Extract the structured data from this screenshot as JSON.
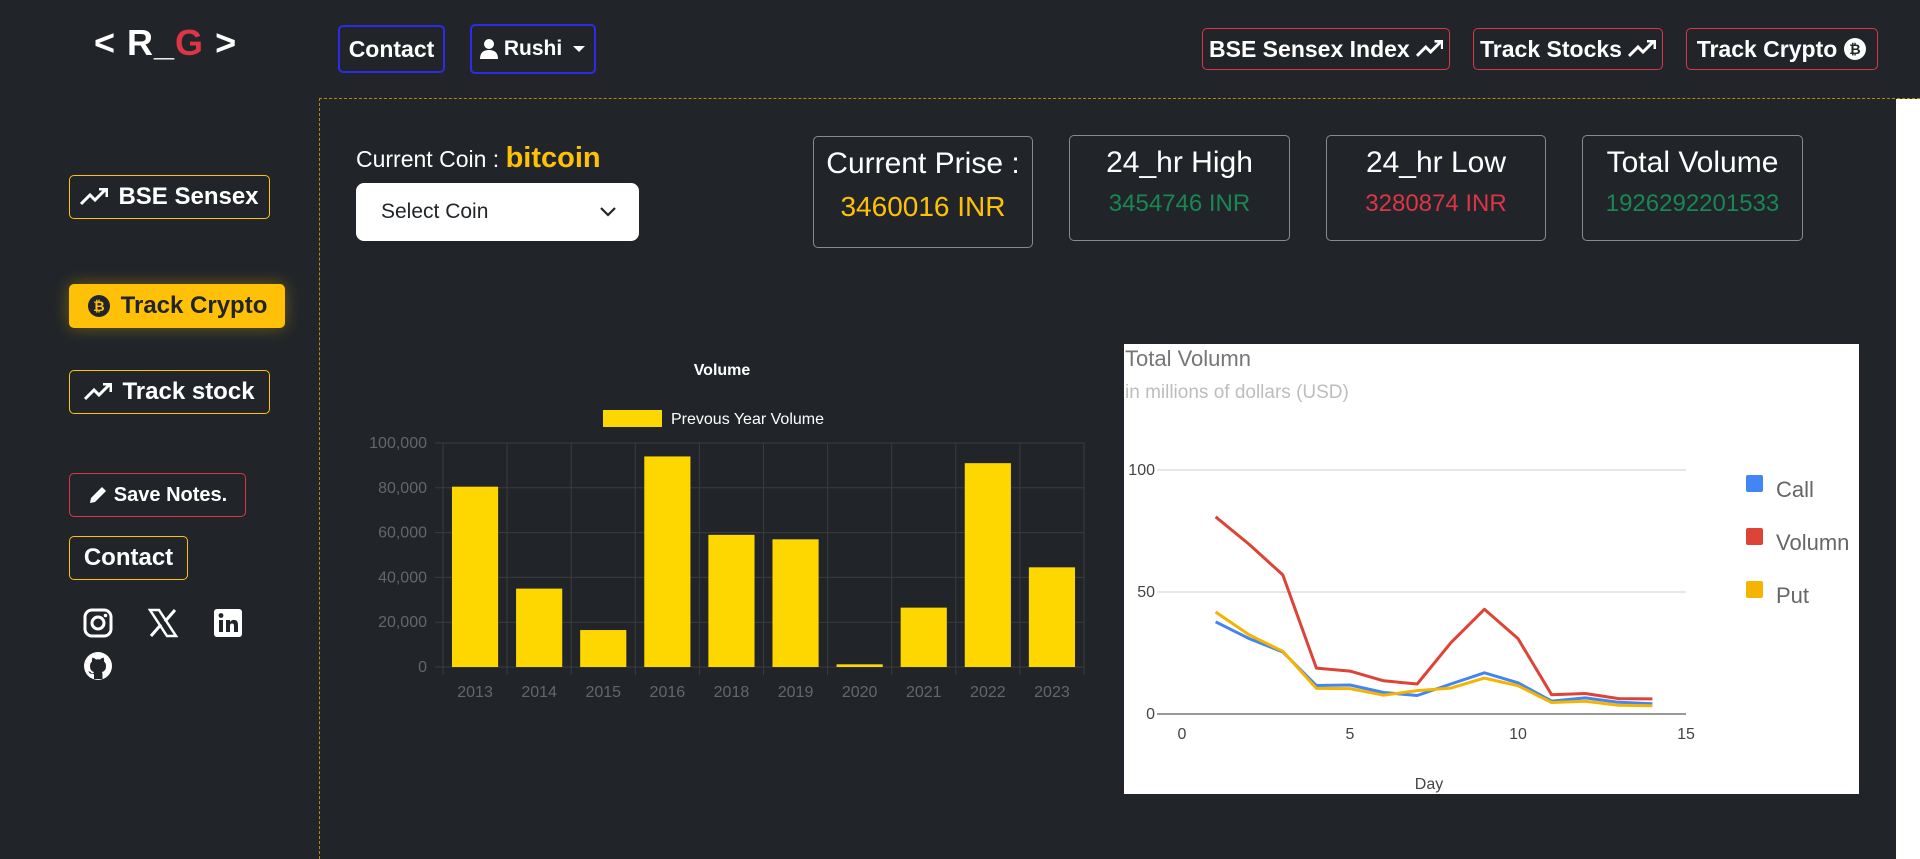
{
  "logo": {
    "open": "< R_",
    "g": "G",
    "close": " >"
  },
  "header": {
    "contact_label": "Contact",
    "user_label": "Rushi",
    "nav": [
      {
        "label": "BSE Sensex Index",
        "icon": "trend-up-icon"
      },
      {
        "label": "Track Stocks",
        "icon": "trend-up-icon"
      },
      {
        "label": "Track Crypto",
        "icon": "bitcoin-icon"
      }
    ]
  },
  "sidebar": {
    "items": [
      {
        "label": "BSE Sensex",
        "icon": "trend-up-icon"
      },
      {
        "label": "Track Crypto",
        "icon": "bitcoin-icon",
        "active": true
      },
      {
        "label": "Track stock",
        "icon": "trend-up-icon"
      }
    ],
    "save_notes_label": "Save Notes.",
    "contact_label": "Contact",
    "socials": [
      "instagram-icon",
      "x-icon",
      "linkedin-icon",
      "github-icon"
    ]
  },
  "coin": {
    "label": "Current Coin :",
    "name": "bitcoin",
    "select_placeholder": "Select Coin"
  },
  "stats": [
    {
      "title": "Current Prise :",
      "value": "3460016 INR",
      "color": "#ffc107"
    },
    {
      "title": "24_hr High",
      "value": "3454746 INR",
      "color": "#198754"
    },
    {
      "title": "24_hr Low",
      "value": "3280874 INR",
      "color": "#dc3545"
    },
    {
      "title": "Total Volume",
      "value": "1926292201533",
      "color": "#198754"
    }
  ],
  "colors": {
    "accent": "#ffc107",
    "danger": "#dc3545",
    "primary": "#2b2be8",
    "success": "#198754"
  },
  "chart_data": [
    {
      "type": "bar",
      "title": "Volume",
      "categories": [
        "2013",
        "2014",
        "2015",
        "2016",
        "2018",
        "2019",
        "2020",
        "2021",
        "2022",
        "2023"
      ],
      "series": [
        {
          "name": "Prevous Year Volume",
          "values": [
            80500,
            35000,
            16500,
            94000,
            59000,
            57000,
            1200,
            26500,
            91000,
            44500
          ],
          "color": "#ffd700"
        }
      ],
      "ylim": [
        0,
        100000
      ],
      "yticks": [
        "0",
        "20,000",
        "40,000",
        "60,000",
        "80,000",
        "100,000"
      ],
      "legend": "top"
    },
    {
      "type": "line",
      "title": "Total Volumn",
      "subtitle": "in millions of dollars (USD)",
      "xlabel": "Day",
      "xlim": [
        0,
        15
      ],
      "ylim": [
        0,
        100
      ],
      "xticks": [
        0,
        5,
        10,
        15
      ],
      "yticks": [
        0,
        50,
        100
      ],
      "legend": "right",
      "x": [
        1,
        2,
        3,
        4,
        5,
        6,
        7,
        8,
        9,
        10,
        11,
        12,
        13,
        14
      ],
      "series": [
        {
          "name": "Call",
          "color": "#4285f4",
          "values": [
            37.8,
            30.9,
            25.4,
            11.7,
            11.9,
            8.8,
            7.6,
            12.3,
            16.9,
            12.8,
            5.3,
            6.6,
            4.8,
            4.2
          ]
        },
        {
          "name": "Volumn",
          "color": "#db4437",
          "values": [
            80.8,
            69.5,
            57.0,
            18.8,
            17.6,
            13.6,
            12.3,
            29.2,
            42.9,
            30.9,
            7.9,
            8.4,
            6.3,
            6.2
          ]
        },
        {
          "name": "Put",
          "color": "#f4b400",
          "values": [
            41.8,
            32.4,
            25.7,
            10.5,
            10.4,
            7.7,
            9.6,
            10.6,
            14.7,
            11.6,
            4.7,
            5.2,
            3.6,
            3.4
          ]
        }
      ]
    }
  ]
}
